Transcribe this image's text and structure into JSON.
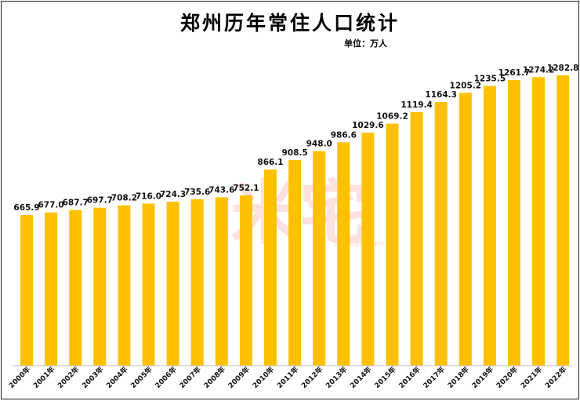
{
  "title": "郑州历年常住人口统计",
  "unit": "单位：万人",
  "watermark": {
    "text": "米宅",
    "url": "mizhai.com"
  },
  "colors": {
    "bar": "#FFC000",
    "watermark": "#F5A8A0"
  },
  "chart_data": {
    "type": "bar",
    "title": "郑州历年常住人口统计",
    "unit": "单位：万人",
    "categories": [
      "2000年",
      "2001年",
      "2002年",
      "2003年",
      "2004年",
      "2005年",
      "2006年",
      "2007年",
      "2008年",
      "2009年",
      "2010年",
      "2011年",
      "2012年",
      "2013年",
      "2014年",
      "2015年",
      "2016年",
      "2017年",
      "2018年",
      "2019年",
      "2020年",
      "2021年",
      "2022年"
    ],
    "values": [
      665.9,
      677.0,
      687.7,
      697.7,
      708.2,
      716.0,
      724.3,
      735.6,
      743.6,
      752.1,
      866.1,
      908.5,
      948.0,
      986.6,
      1029.6,
      1069.2,
      1119.4,
      1164.3,
      1205.2,
      1235.5,
      1261.7,
      1274.2,
      1282.8
    ],
    "value_labels": [
      "665.9",
      "677.0",
      "687.7",
      "697.7",
      "708.2",
      "716.0",
      "724.3",
      "735.6",
      "743.6",
      "752.1",
      "866.1",
      "908.5",
      "948.0",
      "986.6",
      "1029.6",
      "1069.2",
      "1119.4",
      "1164.3",
      "1205.2",
      "1235.5",
      "1261.7",
      "1274.2",
      "1282.8"
    ],
    "ylim": [
      0,
      1400
    ],
    "grid": false,
    "legend": "none"
  }
}
